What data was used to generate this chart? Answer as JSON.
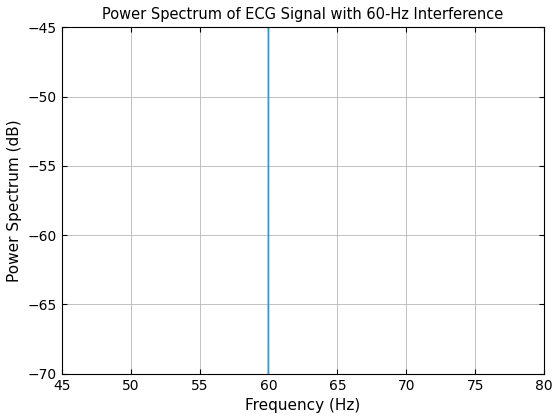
{
  "title": "Power Spectrum of ECG Signal with 60-Hz Interference",
  "xlabel": "Frequency (Hz)",
  "ylabel": "Power Spectrum (dB)",
  "xlim": [
    45,
    80
  ],
  "ylim": [
    -70,
    -45
  ],
  "xticks": [
    45,
    50,
    55,
    60,
    65,
    70,
    75,
    80
  ],
  "yticks": [
    -70,
    -65,
    -60,
    -55,
    -50,
    -45
  ],
  "line_color": "#3399CC",
  "line_width": 1.0,
  "grid": true,
  "bg_color": "#ffffff",
  "fs": 360,
  "N": 65536,
  "seed": 7
}
